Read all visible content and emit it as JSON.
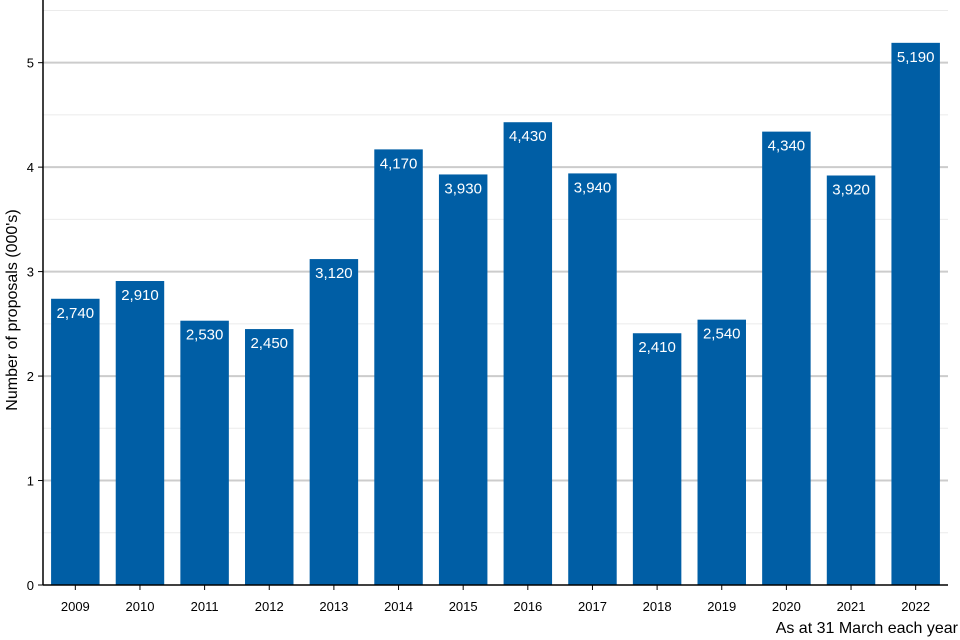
{
  "chart_data": {
    "type": "bar",
    "categories": [
      "2009",
      "2010",
      "2011",
      "2012",
      "2013",
      "2014",
      "2015",
      "2016",
      "2017",
      "2018",
      "2019",
      "2020",
      "2021",
      "2022"
    ],
    "values": [
      2.74,
      2.91,
      2.53,
      2.45,
      3.12,
      4.17,
      3.93,
      4.43,
      3.94,
      2.41,
      2.54,
      4.34,
      3.92,
      5.19
    ],
    "data_labels": [
      "2,740",
      "2,910",
      "2,530",
      "2,450",
      "3,120",
      "4,170",
      "3,930",
      "4,430",
      "3,940",
      "2,410",
      "2,540",
      "4,340",
      "3,920",
      "5,190"
    ],
    "title": "",
    "xlabel": "As at 31 March each year",
    "ylabel": "Number of proposals (000's)",
    "ylim": [
      0,
      5.6
    ],
    "yticks": [
      0,
      1,
      2,
      3,
      4,
      5
    ],
    "grid": true,
    "bar_color": "#005ea5",
    "grid_major_color": "#cccccc",
    "grid_minor_color": "#ebebeb"
  }
}
